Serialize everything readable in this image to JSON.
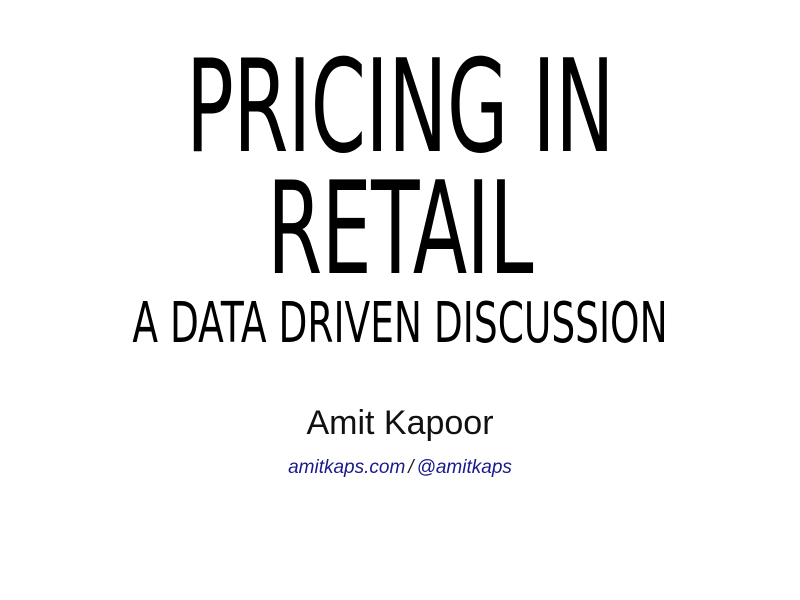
{
  "slide": {
    "title_line1": "PRICING IN",
    "title_line2": "RETAIL",
    "subtitle": "A DATA DRIVEN DISCUSSION",
    "author": "Amit Kapoor",
    "website_link": "amitkaps.com",
    "separator": "/",
    "twitter_link": "@amitkaps",
    "link_color": "#1a1a8c",
    "text_color": "#000000",
    "background_color": "#ffffff"
  }
}
